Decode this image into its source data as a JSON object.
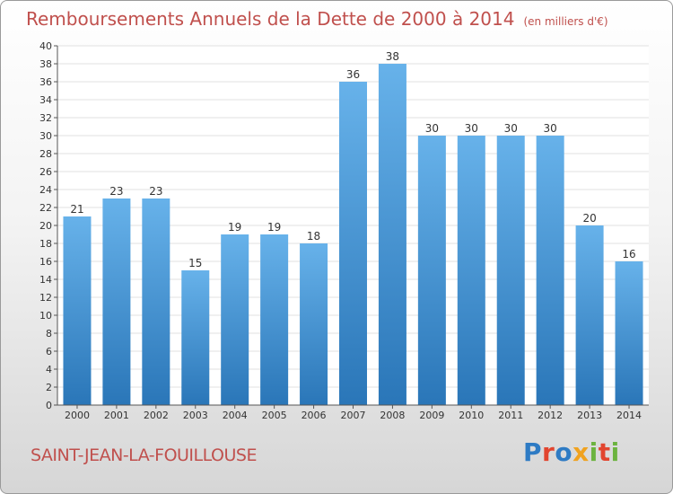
{
  "title": "Remboursements Annuels de la Dette de 2000 à 2014",
  "unit": "(en milliers d'€)",
  "location": "SAINT-JEAN-LA-FOUILLOUSE",
  "brand": {
    "letters": [
      "P",
      "r",
      "o",
      "x",
      "i",
      "t",
      "i"
    ],
    "colors": [
      "#2e7bc4",
      "#e2452f",
      "#2e7bc4",
      "#f0a21f",
      "#6cb33f",
      "#e2452f",
      "#6cb33f"
    ]
  },
  "colors": {
    "title": "#c0504d",
    "bar_top": "#67b2ea",
    "bar_bottom": "#2a76b8"
  },
  "chart_data": {
    "type": "bar",
    "title": "Remboursements Annuels de la Dette de 2000 à 2014",
    "xlabel": "",
    "ylabel": "",
    "ylim": [
      0,
      40
    ],
    "ytick_step": 2,
    "grid": true,
    "categories": [
      "2000",
      "2001",
      "2002",
      "2003",
      "2004",
      "2005",
      "2006",
      "2007",
      "2008",
      "2009",
      "2010",
      "2011",
      "2012",
      "2013",
      "2014"
    ],
    "values": [
      21,
      23,
      23,
      15,
      19,
      19,
      18,
      36,
      38,
      30,
      30,
      30,
      30,
      20,
      16
    ]
  }
}
